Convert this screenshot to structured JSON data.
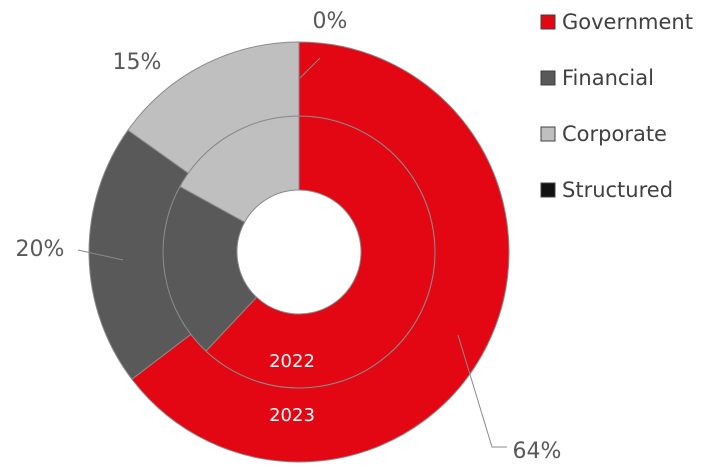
{
  "chart_data": {
    "type": "donut",
    "categories": [
      "Government",
      "Financial",
      "Corporate",
      "Structured"
    ],
    "colors": [
      "#e30613",
      "#595959",
      "#bfbfbf",
      "#111111"
    ],
    "series": [
      {
        "name": "2022",
        "values": [
          62,
          21,
          17,
          0
        ]
      },
      {
        "name": "2023",
        "values": [
          64,
          20,
          15,
          0
        ],
        "value_labels": [
          "64%",
          "20%",
          "15%",
          "0%"
        ]
      }
    ],
    "legend": "right"
  }
}
